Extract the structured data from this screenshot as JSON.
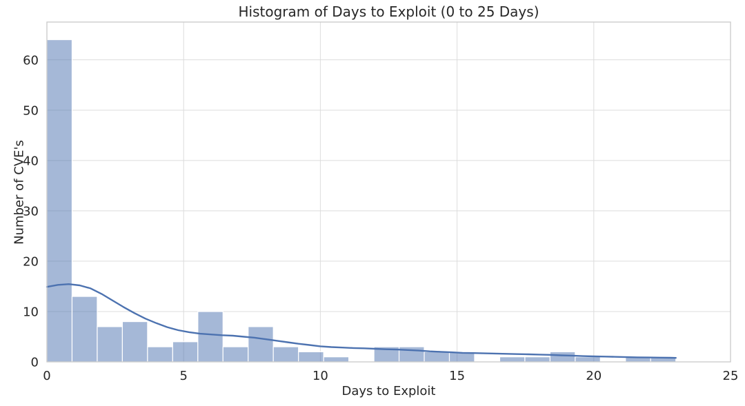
{
  "chart_data": {
    "type": "bar",
    "subtype": "histogram-with-kde",
    "title": "Histogram of Days to Exploit (0 to 25 Days)",
    "xlabel": "Days to Exploit",
    "ylabel": "Number of CVE's",
    "xlim": [
      0,
      25
    ],
    "ylim": [
      0,
      67.5
    ],
    "xticks": [
      0,
      5,
      10,
      15,
      20,
      25
    ],
    "yticks": [
      0,
      10,
      20,
      30,
      40,
      50,
      60
    ],
    "grid": true,
    "legend": "none",
    "bin_start": 0,
    "bin_width": 0.92,
    "bin_counts": [
      64,
      13,
      7,
      8,
      3,
      4,
      10,
      3,
      7,
      3,
      2,
      1,
      0,
      3,
      3,
      2,
      2,
      0,
      1,
      1,
      2,
      1,
      0,
      1,
      1
    ],
    "kde": {
      "x": [
        0,
        0.4,
        0.8,
        1.2,
        1.6,
        2.0,
        2.4,
        2.8,
        3.2,
        3.6,
        4.0,
        4.4,
        4.8,
        5.2,
        5.6,
        6.0,
        6.4,
        6.8,
        7.2,
        7.6,
        8.0,
        8.4,
        8.8,
        9.2,
        9.6,
        10.0,
        10.4,
        10.8,
        11.2,
        11.6,
        12.0,
        12.4,
        12.8,
        13.2,
        13.6,
        14.0,
        14.4,
        14.8,
        15.2,
        15.6,
        16.0,
        16.4,
        16.8,
        17.2,
        17.6,
        18.0,
        18.4,
        18.8,
        19.2,
        19.6,
        20.0,
        20.4,
        20.8,
        21.2,
        21.6,
        22.0,
        22.4,
        22.8,
        23.0
      ],
      "y": [
        14.9,
        15.3,
        15.45,
        15.2,
        14.6,
        13.5,
        12.2,
        10.9,
        9.7,
        8.6,
        7.7,
        6.9,
        6.3,
        5.9,
        5.6,
        5.45,
        5.3,
        5.2,
        5.0,
        4.8,
        4.5,
        4.2,
        3.9,
        3.6,
        3.35,
        3.1,
        2.95,
        2.85,
        2.75,
        2.7,
        2.6,
        2.5,
        2.45,
        2.35,
        2.25,
        2.1,
        2.0,
        1.9,
        1.8,
        1.75,
        1.7,
        1.65,
        1.6,
        1.55,
        1.5,
        1.45,
        1.4,
        1.3,
        1.25,
        1.15,
        1.1,
        1.05,
        1.0,
        0.95,
        0.9,
        0.88,
        0.85,
        0.82,
        0.8
      ]
    },
    "colors": {
      "background": "#ffffff",
      "bar_fill": "rgba(76,114,176,0.5)",
      "bar_edge": "#ffffff",
      "kde_line": "#4c72b0",
      "grid": "#dcdcdc",
      "spine": "#c8c8c8",
      "text": "#262626"
    }
  }
}
